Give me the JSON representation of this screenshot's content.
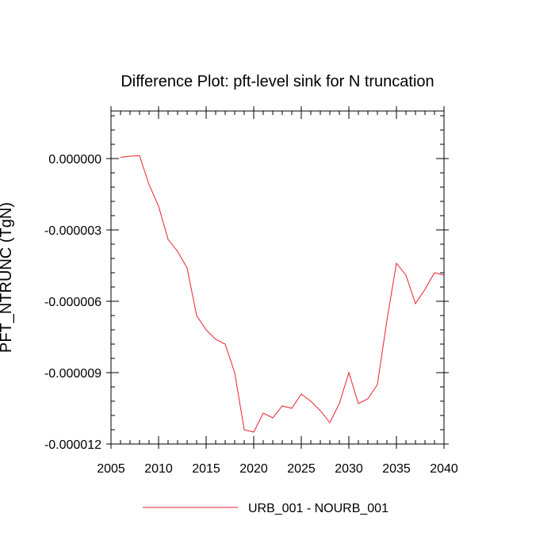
{
  "chart_data": {
    "type": "line",
    "title": "Difference Plot: pft-level sink for N truncation",
    "xlabel": "",
    "ylabel": "PFT_NTRUNC  (TgN)",
    "xlim": [
      2005,
      2040
    ],
    "ylim": [
      -1.2e-05,
      2e-06
    ],
    "x_ticks": [
      2005,
      2010,
      2015,
      2020,
      2025,
      2030,
      2035,
      2040
    ],
    "x_tick_labels": [
      "2005",
      "2010",
      "2015",
      "2020",
      "2025",
      "2030",
      "2035",
      "2040"
    ],
    "y_ticks": [
      0.0,
      -3e-06,
      -6e-06,
      -9e-06,
      -1.2e-05
    ],
    "y_tick_labels": [
      "0.000000",
      "-0.000003",
      "-0.000006",
      "-0.000009",
      "-0.000012"
    ],
    "legend_position": "bottom-center",
    "series": [
      {
        "name": "URB_001 - NOURB_001",
        "color": "#e8202a",
        "x": [
          2006,
          2007,
          2008,
          2009,
          2010,
          2011,
          2012,
          2013,
          2014,
          2015,
          2016,
          2017,
          2018,
          2019,
          2020,
          2021,
          2022,
          2023,
          2024,
          2025,
          2026,
          2027,
          2028,
          2029,
          2030,
          2031,
          2032,
          2033,
          2034,
          2035,
          2036,
          2037,
          2038,
          2039,
          2040
        ],
        "y": [
          5e-08,
          1e-07,
          1.2e-07,
          -1.1e-06,
          -2e-06,
          -3.4e-06,
          -3.9e-06,
          -4.6e-06,
          -6.6e-06,
          -7.2e-06,
          -7.6e-06,
          -7.8e-06,
          -9e-06,
          -1.14e-05,
          -1.15e-05,
          -1.07e-05,
          -1.09e-05,
          -1.04e-05,
          -1.05e-05,
          -9.9e-06,
          -1.02e-05,
          -1.06e-05,
          -1.11e-05,
          -1.03e-05,
          -9e-06,
          -1.03e-05,
          -1.01e-05,
          -9.5e-06,
          -6.8e-06,
          -4.4e-06,
          -4.9e-06,
          -6.1e-06,
          -5.5e-06,
          -4.8e-06,
          -4.9e-06
        ]
      }
    ]
  }
}
